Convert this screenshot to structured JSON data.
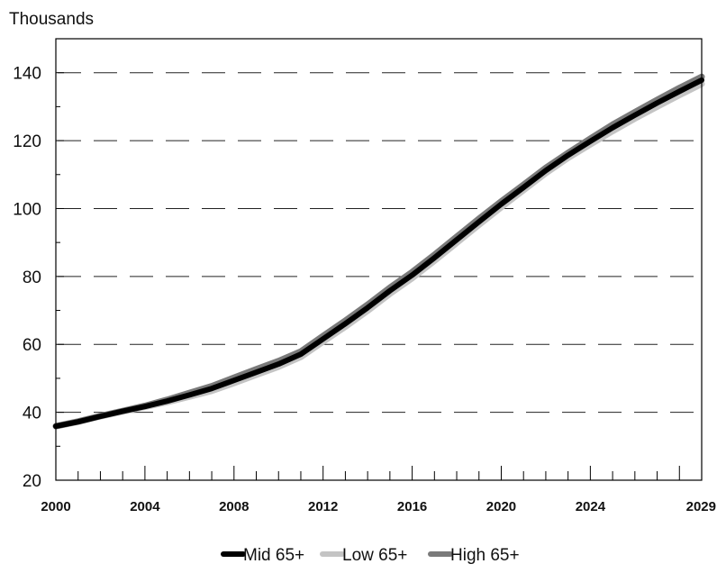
{
  "chart_data": {
    "type": "line",
    "title": "",
    "xlabel": "",
    "ylabel": "",
    "y_unit_label": "Thousands",
    "xlim": [
      2000,
      2029
    ],
    "ylim": [
      20,
      150
    ],
    "x_tick_labels": [
      "2000",
      "2004",
      "2008",
      "2012",
      "2016",
      "2020",
      "2024",
      "2029"
    ],
    "y_tick_labels": [
      "20",
      "40",
      "60",
      "80",
      "100",
      "120",
      "140"
    ],
    "grid": "horizontal dashed",
    "legend_position": "bottom-center",
    "x": [
      2000,
      2001,
      2002,
      2003,
      2004,
      2005,
      2006,
      2007,
      2008,
      2009,
      2010,
      2011,
      2012,
      2013,
      2014,
      2015,
      2016,
      2017,
      2018,
      2019,
      2020,
      2021,
      2022,
      2023,
      2024,
      2025,
      2026,
      2027,
      2028,
      2029
    ],
    "series": [
      {
        "name": "Low 65+",
        "color": "#c4c4c4",
        "values": [
          35.9,
          37.2,
          38.8,
          40.2,
          41.6,
          43.0,
          44.6,
          46.3,
          48.6,
          51.0,
          53.4,
          56.3,
          60.8,
          65.2,
          69.9,
          74.9,
          79.5,
          84.6,
          89.9,
          95.2,
          100.4,
          105.4,
          110.4,
          114.9,
          118.9,
          122.8,
          126.5,
          130.0,
          133.4,
          136.7
        ]
      },
      {
        "name": "High 65+",
        "color": "#7a7a7a",
        "values": [
          35.9,
          37.3,
          38.9,
          40.4,
          41.9,
          43.7,
          45.7,
          47.7,
          50.2,
          52.7,
          55.1,
          57.9,
          62.5,
          67.0,
          71.7,
          76.7,
          81.3,
          86.4,
          91.7,
          97.0,
          102.1,
          107.0,
          112.0,
          116.4,
          120.6,
          124.7,
          128.4,
          132.0,
          135.5,
          138.8
        ]
      },
      {
        "name": "Mid 65+",
        "color": "#000000",
        "values": [
          35.9,
          37.2,
          38.8,
          40.3,
          41.7,
          43.3,
          45.1,
          47.0,
          49.4,
          51.8,
          54.2,
          57.1,
          61.6,
          66.1,
          70.8,
          75.8,
          80.4,
          85.5,
          90.8,
          96.1,
          101.3,
          106.2,
          111.2,
          115.7,
          119.8,
          123.8,
          127.5,
          131.1,
          134.5,
          137.8
        ]
      }
    ],
    "legend": [
      {
        "name": "Mid 65+",
        "color": "#000000"
      },
      {
        "name": "Low 65+",
        "color": "#c4c4c4"
      },
      {
        "name": "High 65+",
        "color": "#7a7a7a"
      }
    ]
  }
}
